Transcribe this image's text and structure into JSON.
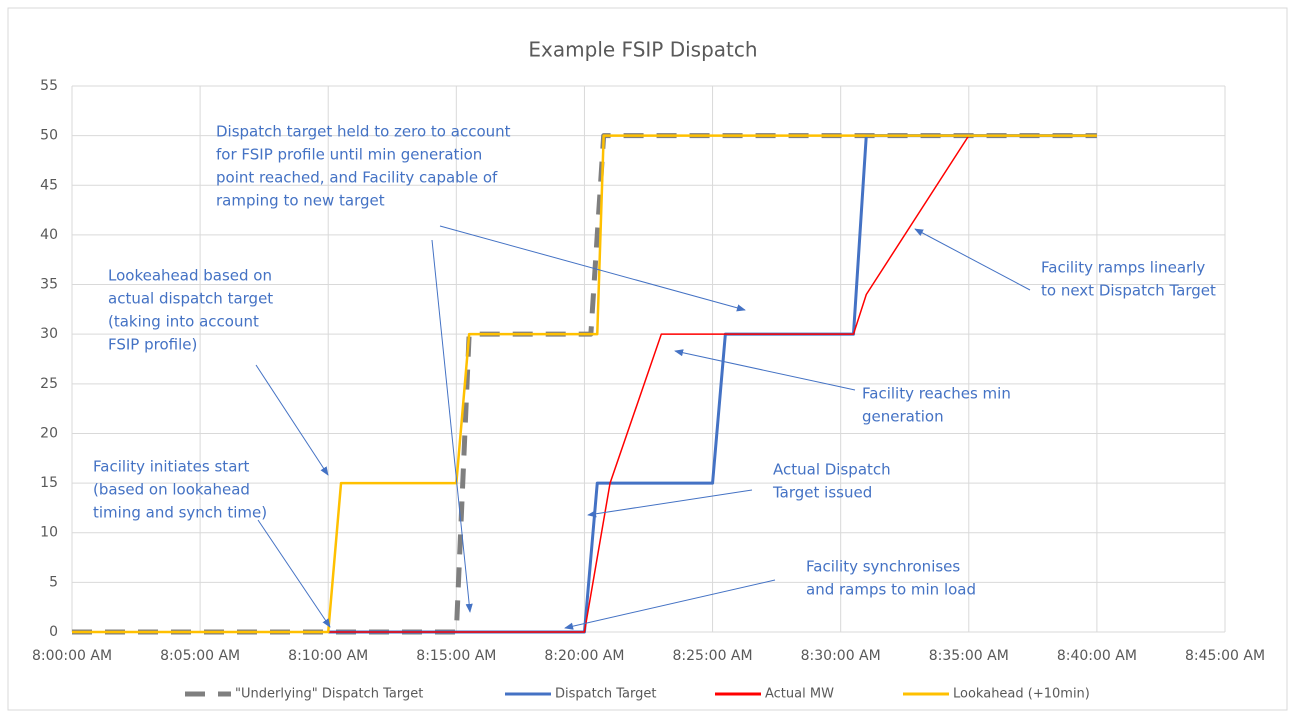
{
  "chart_data": {
    "type": "line",
    "title": "Example FSIP Dispatch",
    "xlim": [
      "8:00:00 AM",
      "8:45:00 AM"
    ],
    "xticks": [
      "8:00:00 AM",
      "8:05:00 AM",
      "8:10:00 AM",
      "8:15:00 AM",
      "8:20:00 AM",
      "8:25:00 AM",
      "8:30:00 AM",
      "8:35:00 AM",
      "8:40:00 AM",
      "8:45:00 AM"
    ],
    "ylim": [
      0,
      55
    ],
    "yticks": [
      0,
      5,
      10,
      15,
      20,
      25,
      30,
      35,
      40,
      45,
      50,
      55
    ],
    "grid": true,
    "legend": "bottom",
    "series": [
      {
        "name": "\"Underlying\" Dispatch Target",
        "color": "#7f7f7f",
        "dashed": true,
        "x": [
          "8:00:00 AM",
          "8:15:00 AM",
          "8:15:30 AM",
          "8:20:15 AM",
          "8:20:45 AM",
          "8:40:00 AM"
        ],
        "values": [
          0,
          0,
          30,
          30,
          50,
          50
        ]
      },
      {
        "name": "Dispatch Target",
        "color": "#4472c4",
        "x": [
          "8:10:00 AM",
          "8:20:00 AM",
          "8:20:30 AM",
          "8:25:00 AM",
          "8:25:30 AM",
          "8:30:30 AM",
          "8:31:00 AM",
          "8:40:00 AM"
        ],
        "values": [
          0,
          0,
          15,
          15,
          30,
          30,
          50,
          50
        ]
      },
      {
        "name": "Actual MW",
        "color": "#ff0000",
        "x": [
          "8:10:00 AM",
          "8:20:00 AM",
          "8:21:00 AM",
          "8:23:00 AM",
          "8:30:30 AM",
          "8:31:00 AM",
          "8:35:00 AM",
          "8:40:00 AM"
        ],
        "values": [
          0,
          0,
          15,
          30,
          30,
          34,
          50,
          50
        ]
      },
      {
        "name": "Lookahead (+10min)",
        "color": "#ffc000",
        "x": [
          "8:00:00 AM",
          "8:10:00 AM",
          "8:10:30 AM",
          "8:15:00 AM",
          "8:15:30 AM",
          "8:20:30 AM",
          "8:20:45 AM",
          "8:40:00 AM"
        ],
        "values": [
          0,
          0,
          15,
          15,
          30,
          30,
          50,
          50
        ]
      }
    ],
    "annotations": [
      {
        "lines": [
          "Dispatch target held to zero to account",
          "for FSIP profile until min generation",
          "point reached, and Facility capable of",
          "ramping to new target"
        ]
      },
      {
        "lines": [
          "Lookeahead based on",
          "actual dispatch target",
          "(taking into account",
          "FSIP profile)"
        ]
      },
      {
        "lines": [
          "Facility initiates start",
          "(based on lookahead",
          "timing and synch time)"
        ]
      },
      {
        "lines": [
          "Actual Dispatch",
          "Target issued"
        ]
      },
      {
        "lines": [
          "Facility synchronises",
          "and ramps to min load"
        ]
      },
      {
        "lines": [
          "Facility reaches min",
          "generation"
        ]
      },
      {
        "lines": [
          "Facility ramps linearly",
          "to next Dispatch Target"
        ]
      }
    ]
  }
}
